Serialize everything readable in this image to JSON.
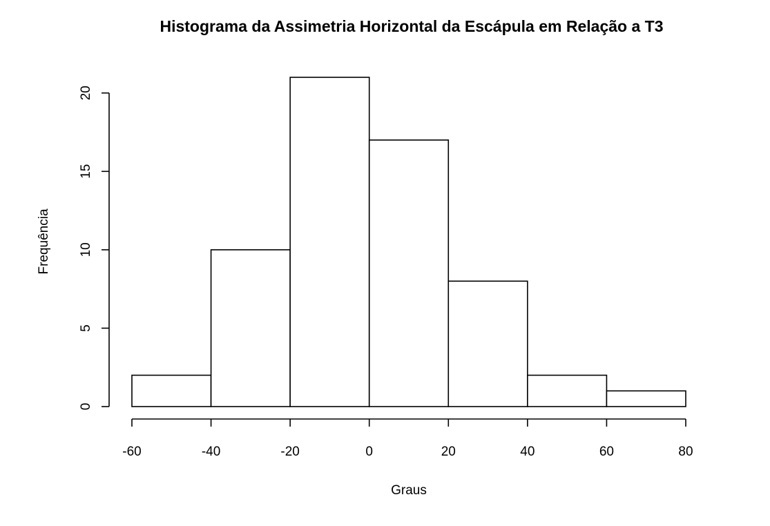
{
  "chart_data": {
    "type": "bar",
    "subtype": "histogram",
    "title": "Histograma da Assimetria Horizontal da Escápula em Relação a T3",
    "xlabel": "Graus",
    "ylabel": "Frequência",
    "bins": [
      {
        "from": -60,
        "to": -40,
        "count": 2
      },
      {
        "from": -40,
        "to": -20,
        "count": 10
      },
      {
        "from": -20,
        "to": 0,
        "count": 21
      },
      {
        "from": 0,
        "to": 20,
        "count": 17
      },
      {
        "from": 20,
        "to": 40,
        "count": 8
      },
      {
        "from": 40,
        "to": 60,
        "count": 2
      },
      {
        "from": 60,
        "to": 80,
        "count": 1
      }
    ],
    "xlim": [
      -60,
      80
    ],
    "ylim": [
      0,
      21
    ],
    "x_ticks": [
      -60,
      -40,
      -20,
      0,
      20,
      40,
      60,
      80
    ],
    "x_tick_labels": [
      "-60",
      "-40",
      "-20",
      "0",
      "20",
      "40",
      "60",
      "80"
    ],
    "y_ticks": [
      0,
      5,
      10,
      15,
      20
    ],
    "y_tick_labels": [
      "0",
      "5",
      "10",
      "15",
      "20"
    ],
    "bar_fill": "#ffffff",
    "bar_stroke": "#000000",
    "grid": false,
    "legend": "none"
  }
}
